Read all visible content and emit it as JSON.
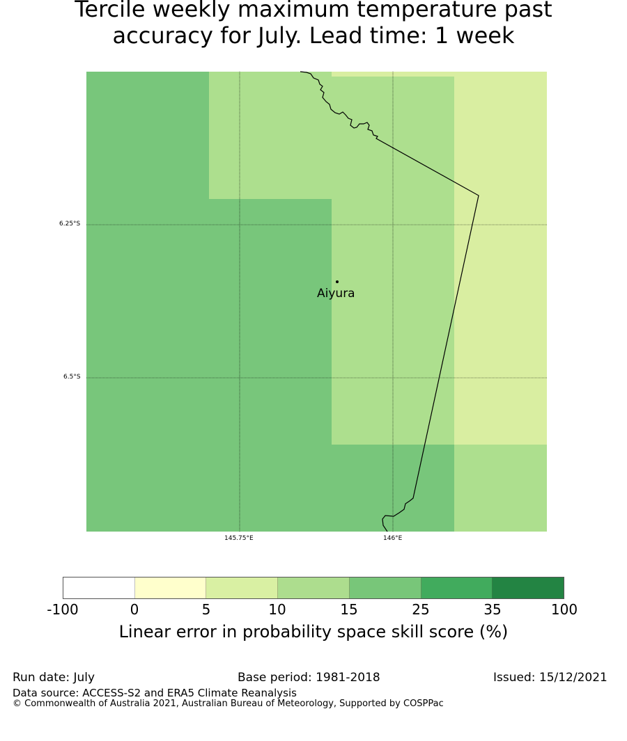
{
  "title": {
    "line1": "Tercile weekly maximum temperature past",
    "line2": "accuracy for July. Lead time: 1 week"
  },
  "map": {
    "lat_labels": [
      "6.25°S",
      "6.5°S"
    ],
    "lon_labels": [
      "145.75°E",
      "146°E"
    ],
    "place": "Aiyura",
    "colors": {
      "c5_10": "#d9eea1",
      "c10_15": "#addf8e",
      "c15_25": "#78c67b"
    }
  },
  "colorbar": {
    "ticks": [
      "-100",
      "0",
      "5",
      "10",
      "15",
      "25",
      "35",
      "100"
    ],
    "colors": [
      "#ffffff",
      "#ffffcc",
      "#d9f0a3",
      "#addd8e",
      "#78c679",
      "#41ab5d",
      "#238443"
    ],
    "label": "Linear error in probability space skill score (%)"
  },
  "footer": {
    "run_date": "Run date: July",
    "base_period": "Base period: 1981-2018",
    "issued": "Issued: 15/12/2021",
    "data_source": "Data source: ACCESS-S2 and ERA5 Climate Reanalysis",
    "copyright": "© Commonwealth of Australia 2021, Australian Bureau of Meteorology, Supported by COSPPac"
  }
}
